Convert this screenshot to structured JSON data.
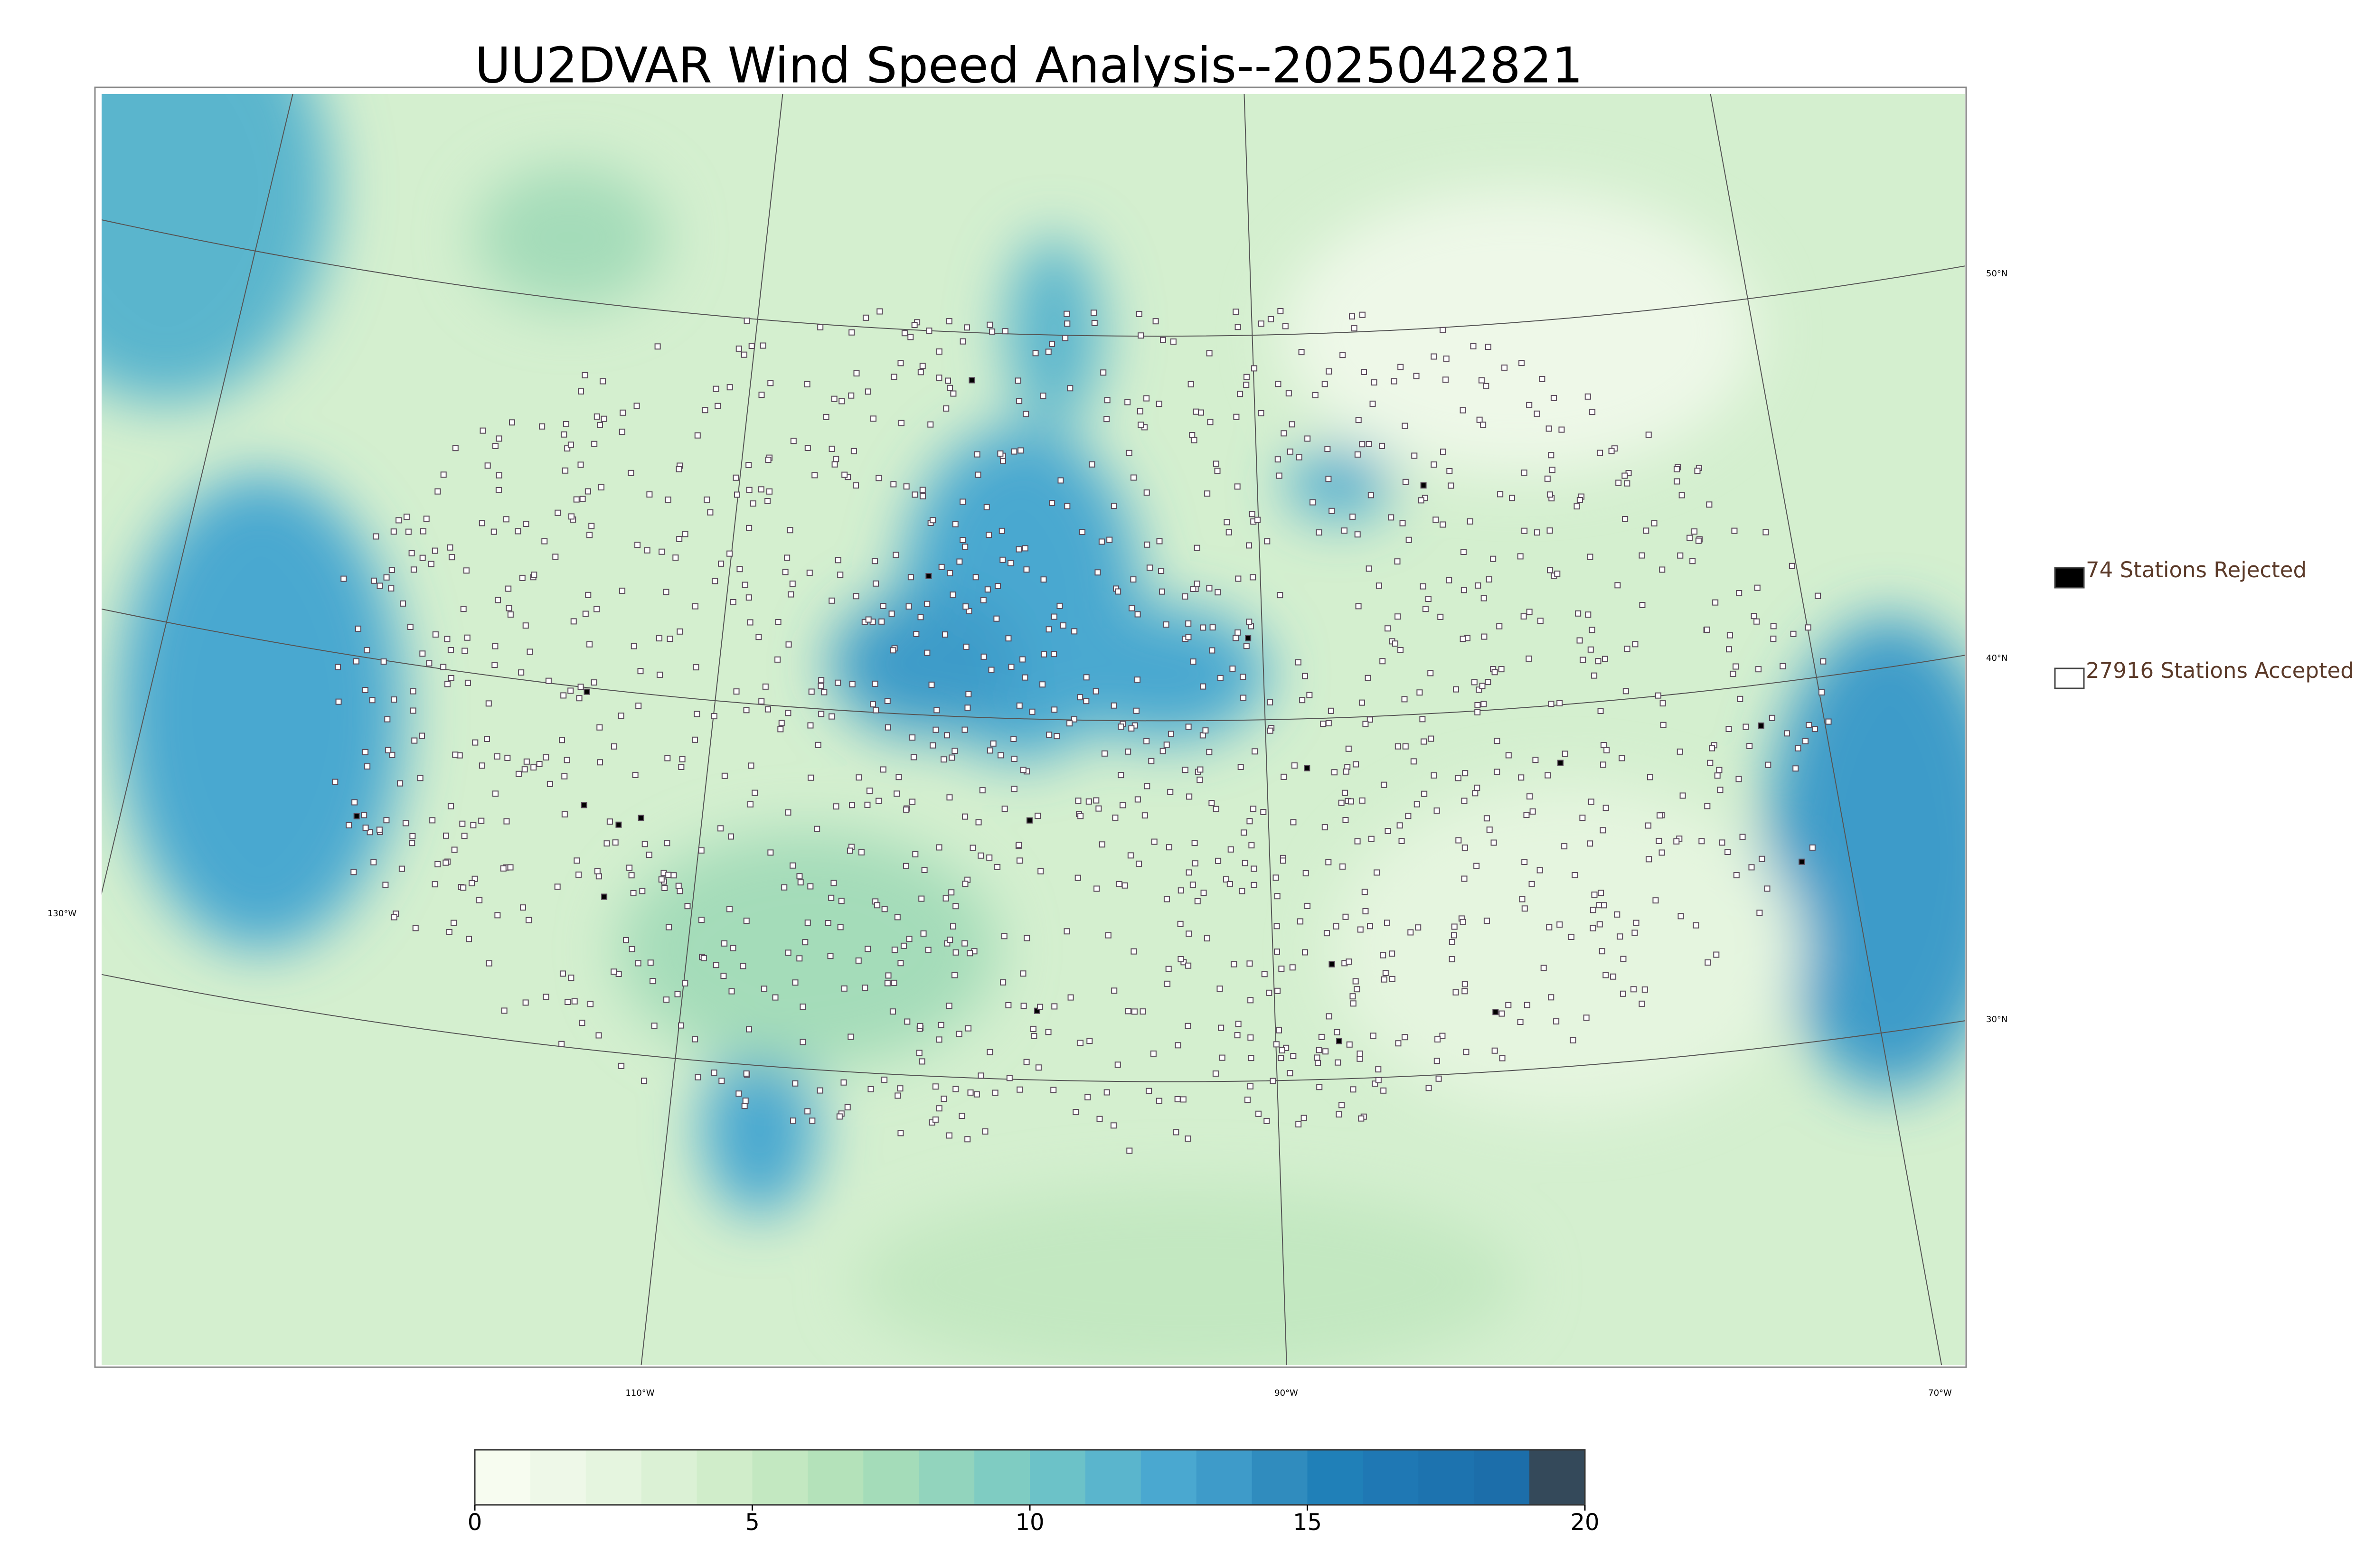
{
  "title": "UU2DVAR Wind Speed Analysis--2025042821",
  "map": {
    "lat_labels": [
      "50°N",
      "40°N",
      "30°N"
    ],
    "lon_labels": [
      "130°W",
      "110°W",
      "90°W",
      "70°W"
    ]
  },
  "legend": {
    "entries": [
      {
        "label": "74 Stations Rejected",
        "color": "#000000"
      },
      {
        "label": "27916 Stations Accepted",
        "color": "#ffffff"
      }
    ]
  },
  "colorbar": {
    "lim": [
      0,
      20
    ],
    "ticks": [
      0,
      5,
      10,
      15,
      20
    ],
    "colors": [
      "#f7fcf0",
      "#eef8e8",
      "#e5f5df",
      "#dbf1d5",
      "#d0edca",
      "#c3e8c1",
      "#b4e2ba",
      "#a4dcb9",
      "#92d4bd",
      "#7fccc2",
      "#6cc2c8",
      "#5ab5cd",
      "#4aa8d0",
      "#3e9bc9",
      "#308cbe",
      "#2080b8",
      "#1f78b4",
      "#1d73af",
      "#1c6eaa",
      "#34495a"
    ]
  }
}
